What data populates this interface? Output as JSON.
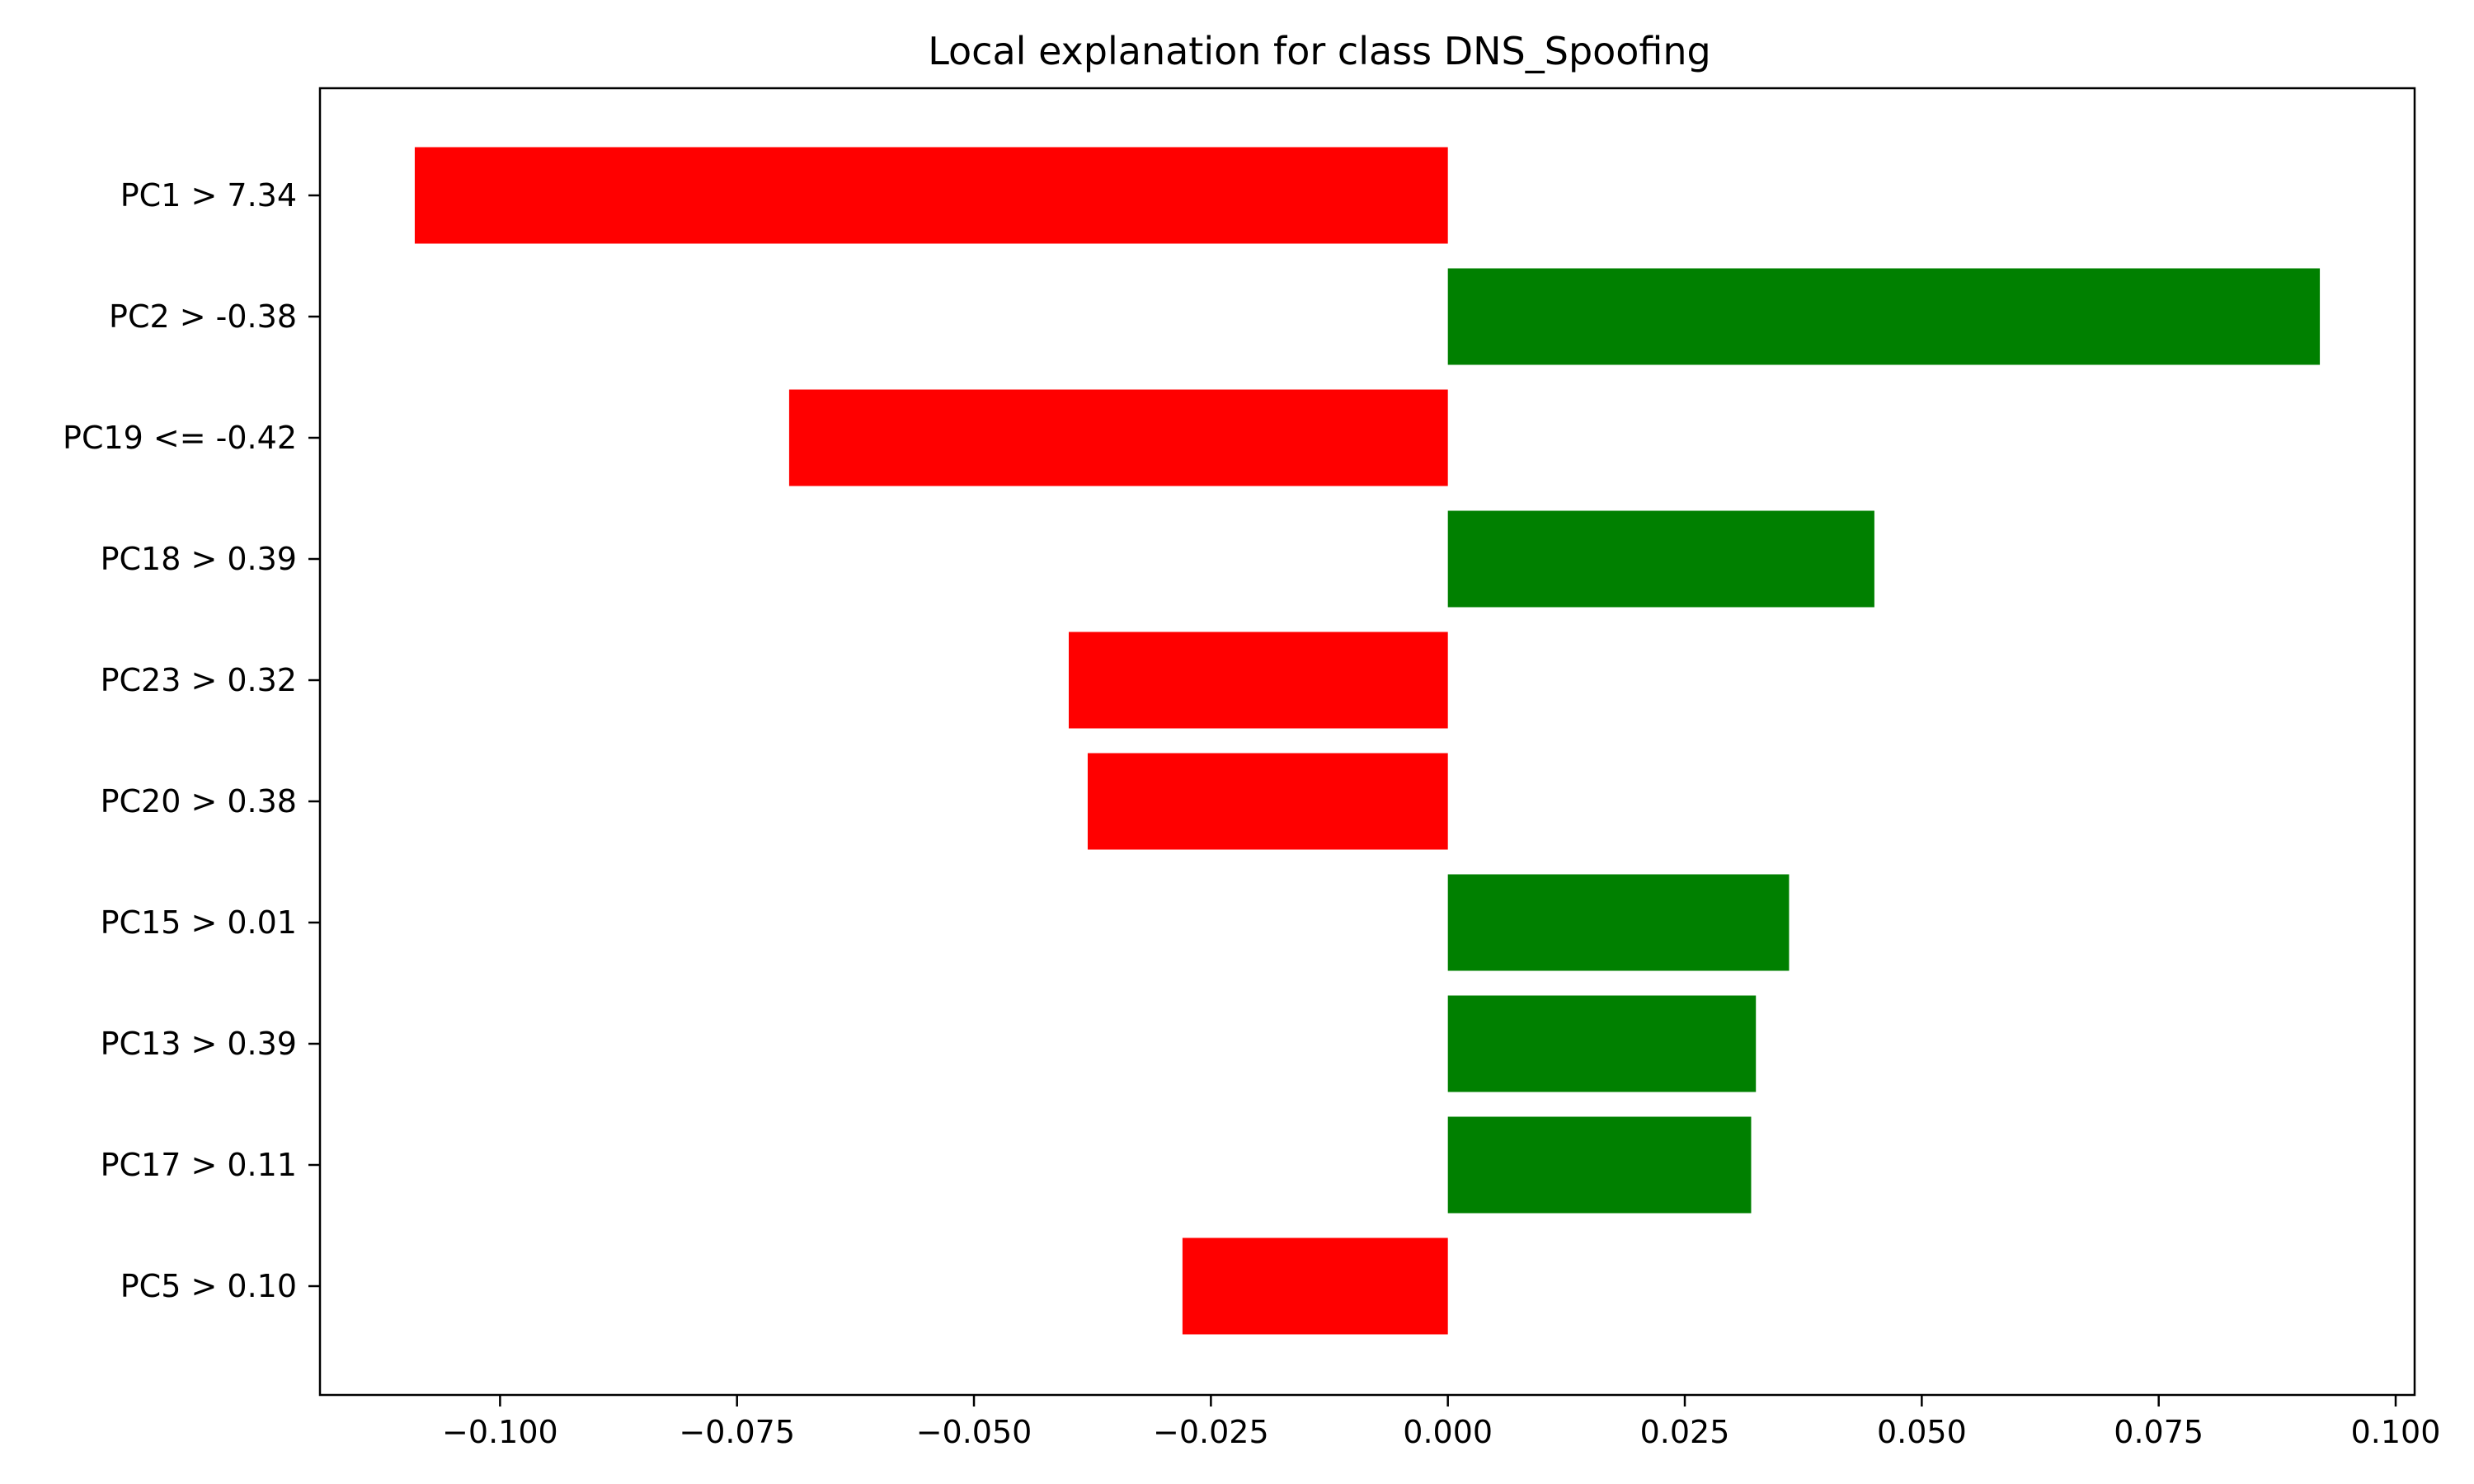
{
  "chart_data": {
    "type": "bar",
    "orientation": "horizontal",
    "title": "Local explanation for class DNS_Spoofing",
    "xlabel": "",
    "ylabel": "",
    "categories": [
      "PC1 > 7.34",
      "PC2 > -0.38",
      "PC19 <= -0.42",
      "PC18 > 0.39",
      "PC23 > 0.32",
      "PC20 > 0.38",
      "PC15 > 0.01",
      "PC13 > 0.39",
      "PC17 > 0.11",
      "PC5 > 0.10"
    ],
    "values": [
      -0.109,
      0.092,
      -0.0695,
      0.045,
      -0.04,
      -0.038,
      0.036,
      0.0325,
      0.032,
      -0.028
    ],
    "xlim": [
      -0.119,
      0.102
    ],
    "xticks": [
      -0.1,
      -0.075,
      -0.05,
      -0.025,
      0.0,
      0.025,
      0.05,
      0.075,
      0.1
    ],
    "xtick_labels": [
      "−0.100",
      "−0.075",
      "−0.050",
      "−0.025",
      "0.000",
      "0.025",
      "0.050",
      "0.075",
      "0.100"
    ],
    "grid": false,
    "colors": {
      "positive": "#008000",
      "negative": "#ff0000"
    }
  }
}
